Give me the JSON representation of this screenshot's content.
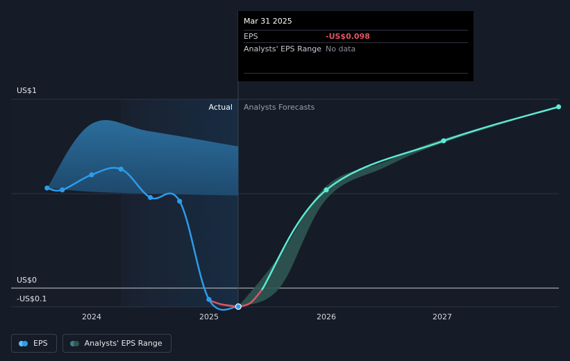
{
  "chart_data": {
    "type": "line",
    "y_axis": {
      "label_top": "US$1",
      "label_zero": "US$0",
      "label_bottom": "-US$0.1",
      "ylim": [
        -0.1,
        1.0
      ]
    },
    "x_axis": {
      "ticks": [
        "2024",
        "2025",
        "2026",
        "2027"
      ],
      "xlim": [
        2023.45,
        2027.98
      ]
    },
    "regions": {
      "actual_label": "Actual",
      "forecast_label": "Analysts Forecasts"
    },
    "series": [
      {
        "name": "EPS",
        "color": "#2d9ceb",
        "points": [
          {
            "x": 2023.62,
            "y": 0.53
          },
          {
            "x": 2023.75,
            "y": 0.52
          },
          {
            "x": 2024.0,
            "y": 0.6
          },
          {
            "x": 2024.25,
            "y": 0.63
          },
          {
            "x": 2024.5,
            "y": 0.48
          },
          {
            "x": 2024.75,
            "y": 0.46
          },
          {
            "x": 2025.0,
            "y": -0.06
          },
          {
            "x": 2025.25,
            "y": -0.098
          }
        ]
      },
      {
        "name": "EPS forecast",
        "color": "#5eead4",
        "points": [
          {
            "x": 2025.25,
            "y": -0.098
          },
          {
            "x": 2026.0,
            "y": 0.52
          },
          {
            "x": 2027.0,
            "y": 0.78
          },
          {
            "x": 2027.98,
            "y": 0.96
          }
        ]
      }
    ],
    "past_forecast_range": {
      "x": [
        2023.62,
        2024.0,
        2024.5,
        2025.25
      ],
      "high": [
        0.53,
        0.87,
        0.83,
        0.75
      ],
      "low": [
        0.53,
        0.51,
        0.5,
        0.49
      ]
    },
    "forecast_range": {
      "x": [
        2025.25,
        2025.6,
        2026.0,
        2026.5,
        2027.0,
        2027.98
      ],
      "high": [
        -0.098,
        0.17,
        0.54,
        0.67,
        0.79,
        0.96
      ],
      "low": [
        -0.098,
        0.0,
        0.47,
        0.64,
        0.77,
        0.96
      ]
    },
    "highlight_date": "Mar 31 2025",
    "colors": {
      "eps": "#2d9ceb",
      "negative": "#e05563",
      "forecast": "#5eead4",
      "range_fill": "#2f6d8f",
      "forecast_range": "#2d5652"
    }
  },
  "tooltip": {
    "date": "Mar 31 2025",
    "eps_label": "EPS",
    "eps_value": "-US$0.098",
    "range_label": "Analysts' EPS Range",
    "range_value": "No data"
  },
  "legend": [
    {
      "label": "EPS"
    },
    {
      "label": "Analysts' EPS Range"
    }
  ]
}
